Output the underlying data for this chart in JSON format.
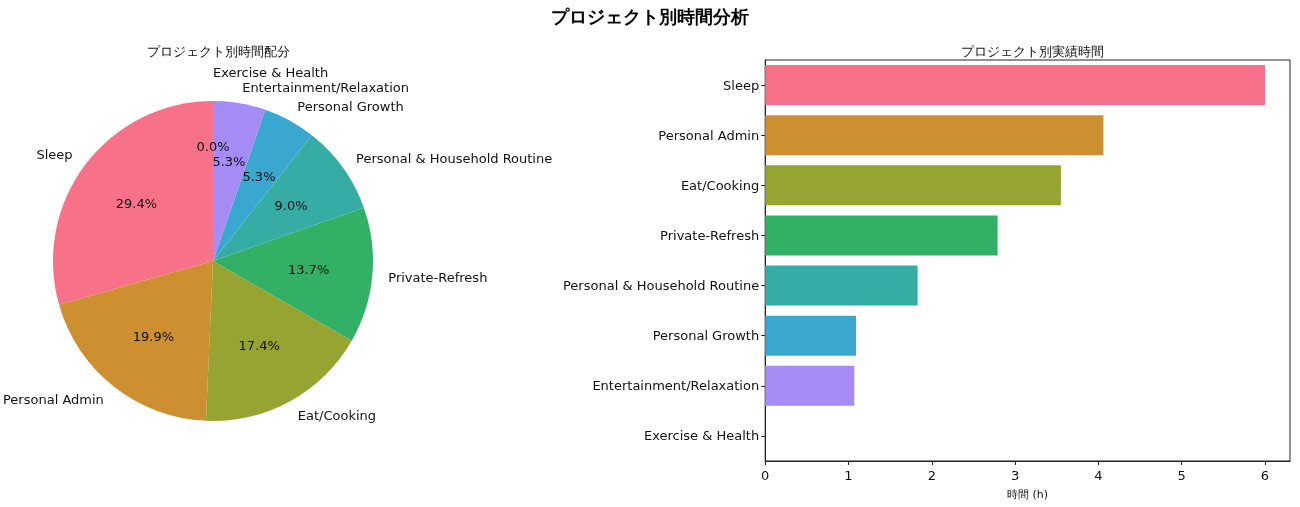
{
  "chart_data": [
    {
      "type": "pie",
      "title": "プロジェクト別時間分析",
      "subtitle": "プロジェクト別時間配分",
      "categories": [
        "Sleep",
        "Personal Admin",
        "Eat/Cooking",
        "Private-Refresh",
        "Personal & Household Routine",
        "Personal Growth",
        "Entertainment/Relaxation",
        "Exercise & Health"
      ],
      "values": [
        29.4,
        19.9,
        17.4,
        13.7,
        9.0,
        5.3,
        5.3,
        0.0
      ],
      "value_labels": [
        "29.4%",
        "19.9%",
        "17.4%",
        "13.7%",
        "9.0%",
        "5.3%",
        "5.3%",
        "0.0%"
      ],
      "colors": [
        "#f77189",
        "#ce8f31",
        "#97a431",
        "#32b166",
        "#36ada4",
        "#39a7d0",
        "#a48cf4",
        "#f561dd"
      ]
    },
    {
      "type": "bar",
      "title": "プロジェクト別実績時間",
      "orientation": "horizontal",
      "xlabel": "時間 (h)",
      "categories": [
        "Sleep",
        "Personal Admin",
        "Eat/Cooking",
        "Private-Refresh",
        "Personal & Household Routine",
        "Personal Growth",
        "Entertainment/Relaxation",
        "Exercise & Health"
      ],
      "values": [
        6.0,
        4.06,
        3.55,
        2.79,
        1.83,
        1.09,
        1.07,
        0
      ],
      "colors": [
        "#f77189",
        "#ce8f31",
        "#97a431",
        "#32b166",
        "#36ada4",
        "#39a7d0",
        "#a48cf4",
        "#f561dd"
      ],
      "xlim": [
        0,
        6.3
      ],
      "xticks": [
        0,
        1,
        2,
        3,
        4,
        5,
        6
      ]
    }
  ]
}
